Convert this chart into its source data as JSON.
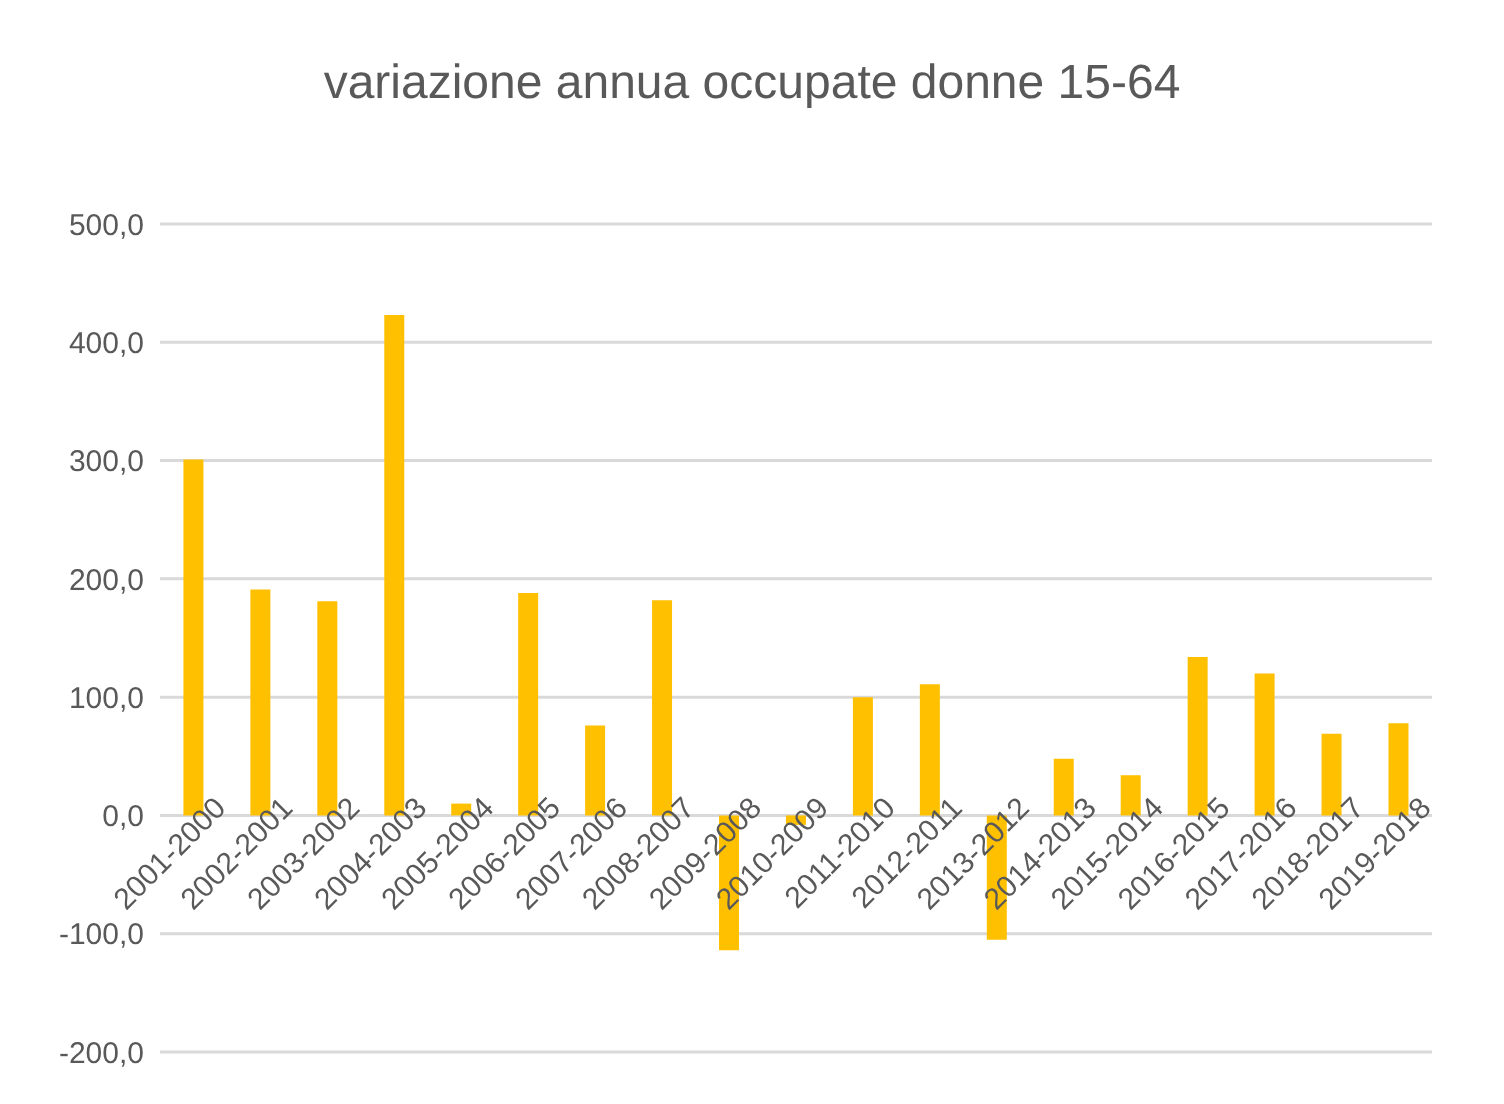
{
  "chart_data": {
    "type": "bar",
    "title": "variazione annua occupate donne 15-64",
    "categories": [
      "2001-2000",
      "2002-2001",
      "2003-2002",
      "2004-2003",
      "2005-2004",
      "2006-2005",
      "2007-2006",
      "2008-2007",
      "2009-2008",
      "2010-2009",
      "2011-2010",
      "2012-2011",
      "2013-2012",
      "2014-2013",
      "2015-2014",
      "2016-2015",
      "2017-2016",
      "2018-2017",
      "2019-2018"
    ],
    "values": [
      301,
      191,
      181,
      423,
      10,
      188,
      76,
      182,
      -114,
      -8,
      100,
      111,
      -105,
      48,
      34,
      134,
      120,
      69,
      78
    ],
    "color": "#ffc000",
    "ylim": [
      -200,
      500
    ],
    "yticks": [
      {
        "value": -200,
        "label": "-200,0"
      },
      {
        "value": -100,
        "label": "-100,0"
      },
      {
        "value": 0,
        "label": "0,0"
      },
      {
        "value": 100,
        "label": "100,0"
      },
      {
        "value": 200,
        "label": "200,0"
      },
      {
        "value": 300,
        "label": "300,0"
      },
      {
        "value": 400,
        "label": "400,0"
      },
      {
        "value": 500,
        "label": "500,0"
      }
    ],
    "grid": "y"
  }
}
